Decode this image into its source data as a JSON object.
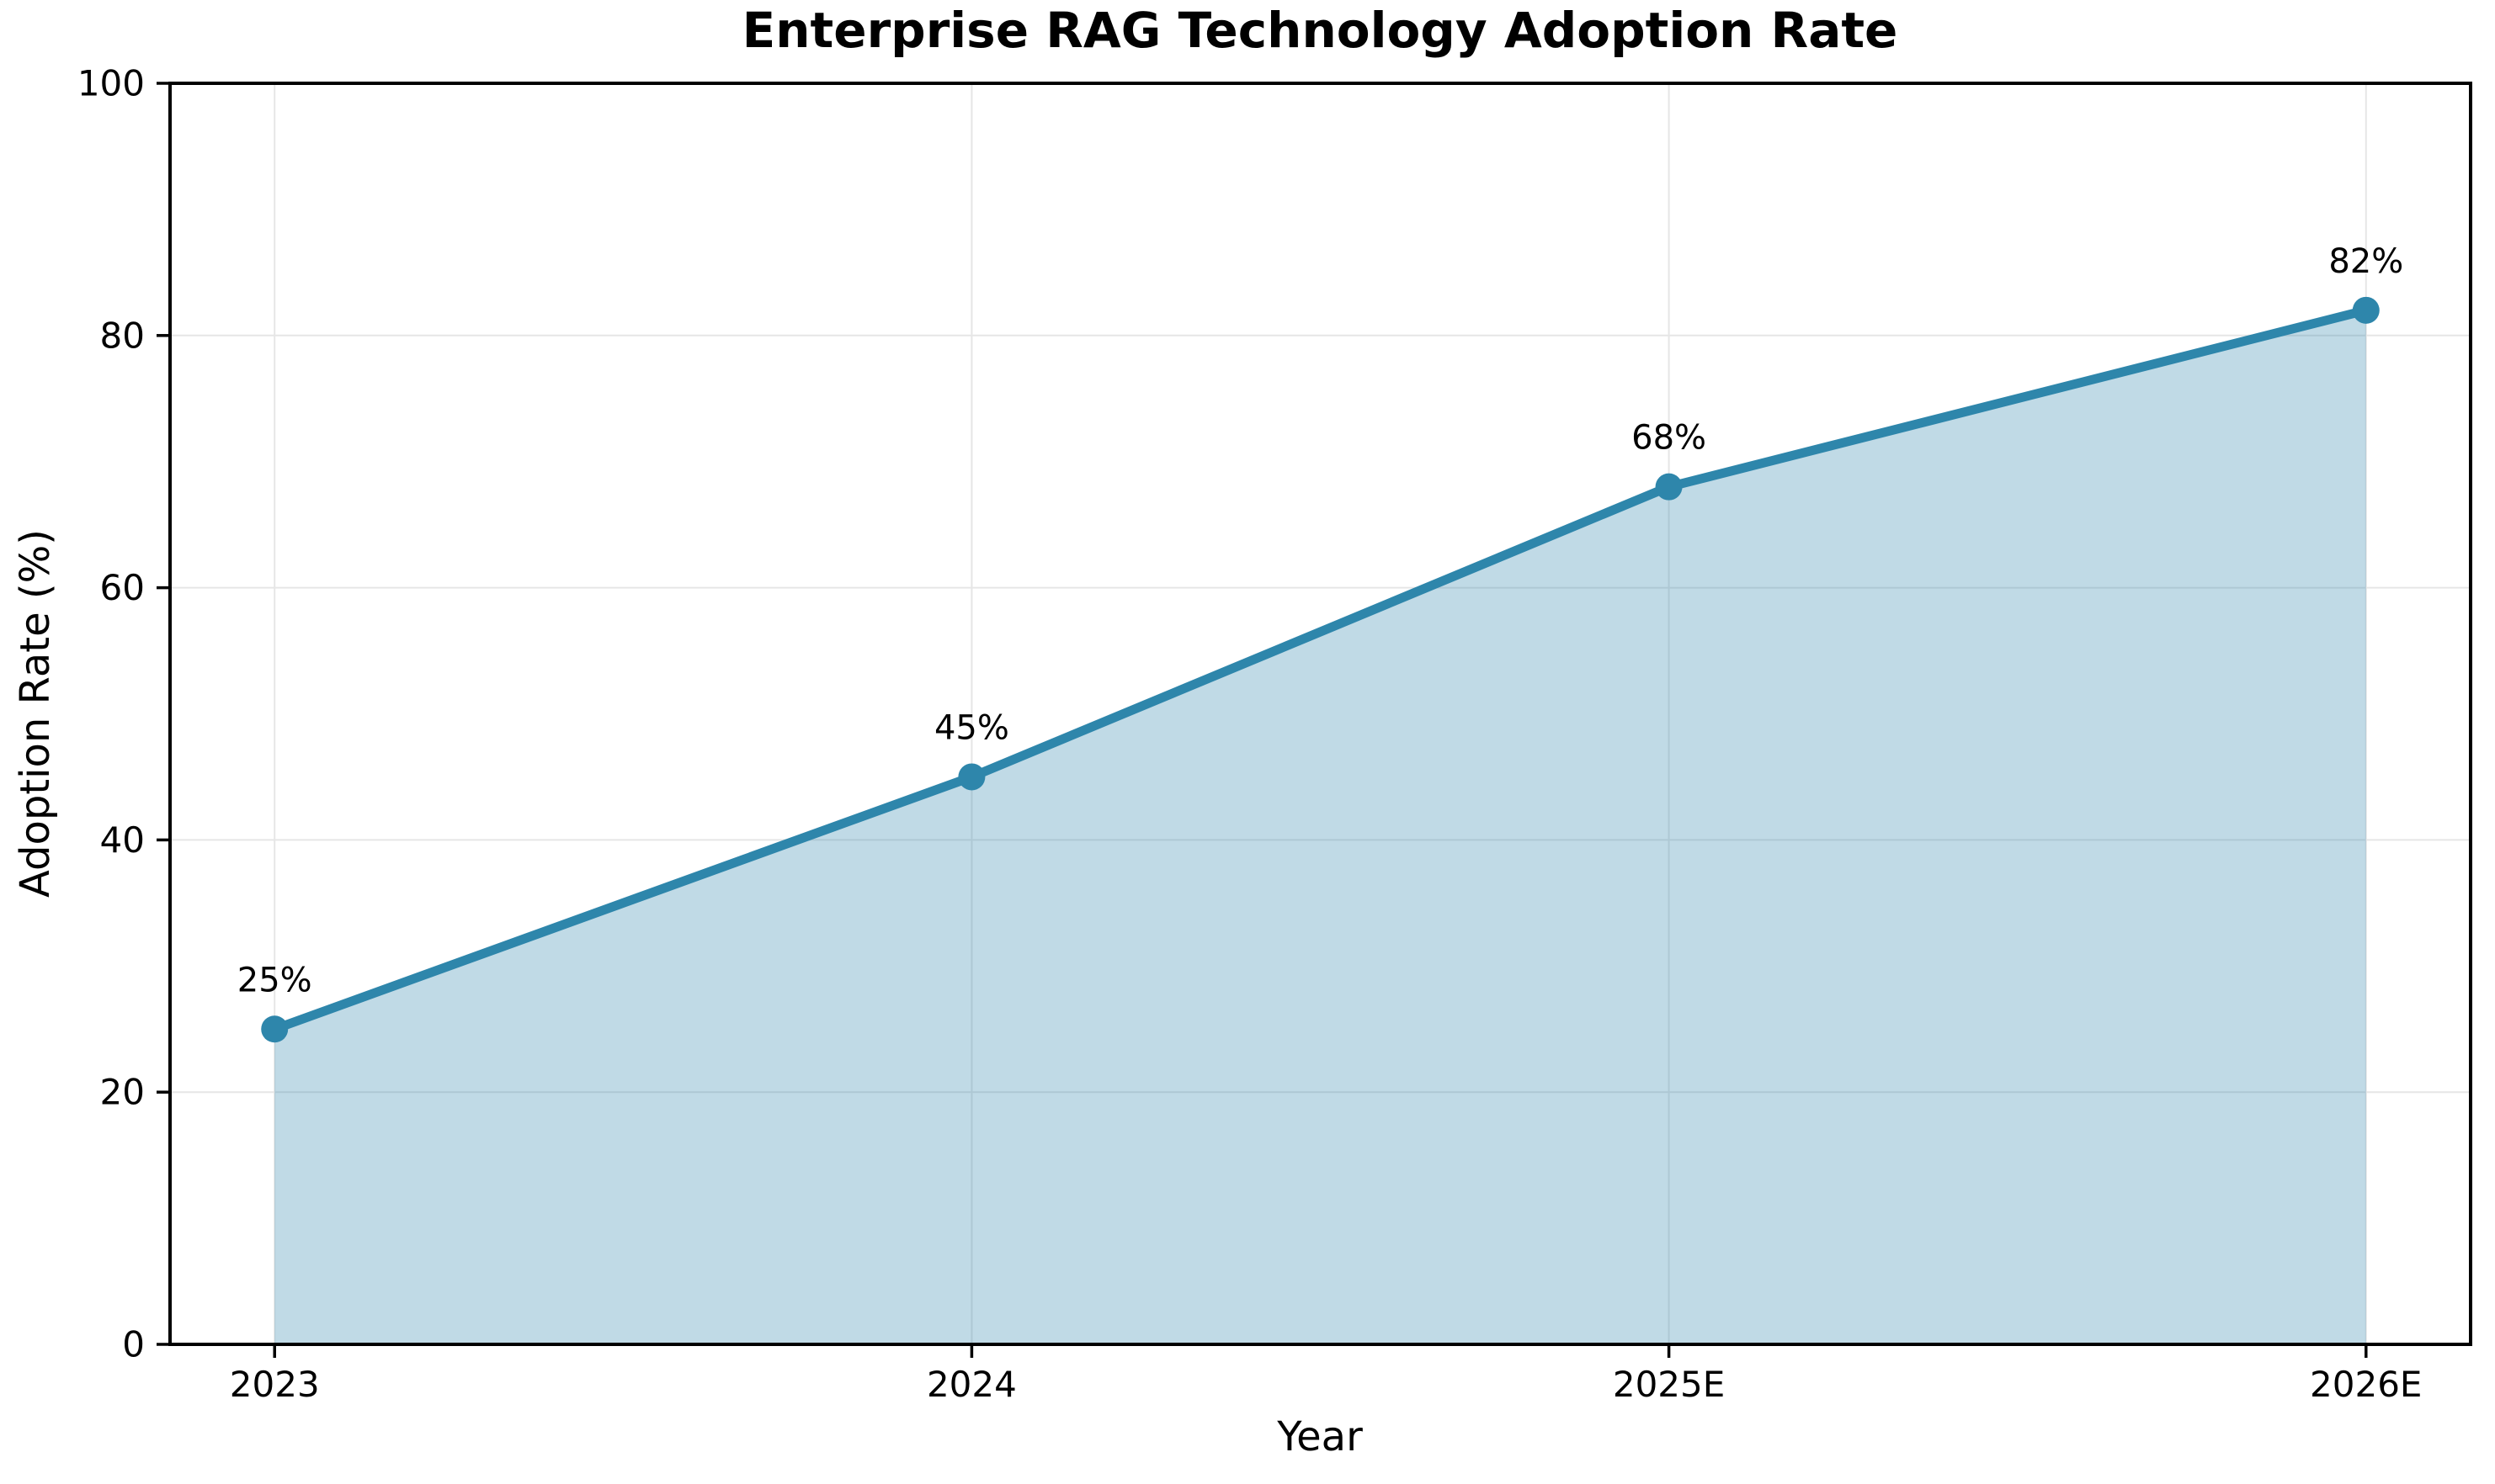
{
  "chart_data": {
    "type": "area",
    "title": "Enterprise RAG Technology Adoption Rate",
    "xlabel": "Year",
    "ylabel": "Adoption Rate (%)",
    "categories": [
      "2023",
      "2024",
      "2025E",
      "2026E"
    ],
    "values": [
      25,
      45,
      68,
      82
    ],
    "point_labels": [
      "25%",
      "45%",
      "68%",
      "82%"
    ],
    "ylim": [
      0,
      100
    ],
    "yticks": [
      0,
      20,
      40,
      60,
      80,
      100
    ],
    "grid": true,
    "legend": "none",
    "colors": {
      "line": "#2e86ab",
      "marker": "#2e86ab",
      "fill": "rgba(46,134,171,0.30)",
      "grid": "#e6e6e6",
      "spine": "#000000",
      "text": "#000000",
      "background": "#ffffff"
    }
  }
}
